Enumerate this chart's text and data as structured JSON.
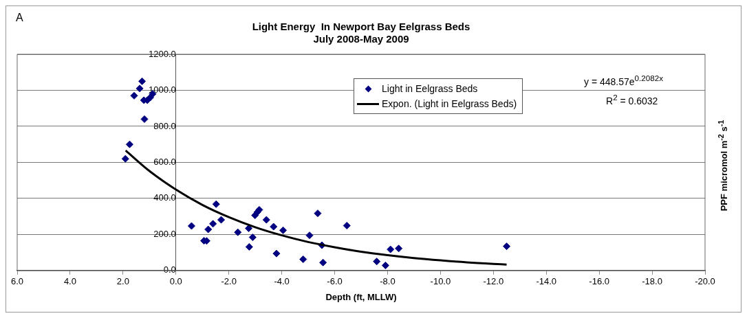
{
  "chart_data": {
    "type": "scatter",
    "title": "Light Energy  In Newport Bay Eelgrass Beds",
    "subtitle": "July 2008-May 2009",
    "xlabel": "Depth (ft, MLLW)",
    "ylabel": "PPF micromol m$^{-2}$ s$^{-1}$",
    "annotations": [
      "A",
      "y = 448.57e$^{0.2082x}$",
      "R$^{2}$ = 0.6032"
    ],
    "xlim": [
      6,
      -20
    ],
    "xticks": [
      {
        "value": 6,
        "label": "6.0"
      },
      {
        "value": 4,
        "label": "4.0"
      },
      {
        "value": 2,
        "label": "2.0"
      },
      {
        "value": 0,
        "label": "0.0"
      },
      {
        "value": -2,
        "label": "-2.0"
      },
      {
        "value": -4,
        "label": "-4.0"
      },
      {
        "value": -6,
        "label": "-6.0"
      },
      {
        "value": -8,
        "label": "-8.0"
      },
      {
        "value": -10,
        "label": "-10.0"
      },
      {
        "value": -12,
        "label": "-12.0"
      },
      {
        "value": -14,
        "label": "-14.0"
      },
      {
        "value": -16,
        "label": "-16.0"
      },
      {
        "value": -18,
        "label": "-18.0"
      },
      {
        "value": -20,
        "label": "-20.0"
      }
    ],
    "ylim": [
      0,
      1200
    ],
    "yticks": [
      {
        "value": 0,
        "label": "0.0"
      },
      {
        "value": 200,
        "label": "200.0"
      },
      {
        "value": 400,
        "label": "400.0"
      },
      {
        "value": 600,
        "label": "600.0"
      },
      {
        "value": 800,
        "label": "800.0"
      },
      {
        "value": 1000,
        "label": "1000.0"
      },
      {
        "value": 1200,
        "label": "1200.0"
      }
    ],
    "grid": "y",
    "legend": "top right",
    "series": [
      {
        "name": "Light in Eelgrass Beds",
        "type": "scatter",
        "color": "#000080",
        "marker": "diamond",
        "x": [
          1.91,
          1.75,
          1.58,
          1.37,
          1.28,
          1.21,
          1.08,
          1.19,
          0.97,
          0.88,
          -0.59,
          -1.06,
          -1.16,
          -1.22,
          -1.4,
          -1.52,
          -1.71,
          -2.34,
          -2.75,
          -2.77,
          -2.9,
          -2.99,
          -3.08,
          -3.15,
          -3.42,
          -3.69,
          -3.8,
          -4.05,
          -4.81,
          -5.05,
          -5.36,
          -5.52,
          -5.56,
          -6.46,
          -7.59,
          -7.92,
          -8.11,
          -8.42,
          -12.5
        ],
        "values": [
          620,
          700,
          970,
          1010,
          1050,
          945,
          945,
          840,
          960,
          980,
          247,
          165,
          164,
          228,
          259,
          368,
          281,
          212,
          234,
          131,
          184,
          306,
          324,
          337,
          281,
          243,
          94,
          223,
          62,
          195,
          317,
          140,
          44,
          249,
          50,
          28,
          117,
          122,
          134
        ]
      },
      {
        "name": "Expon. (Light in Eelgrass Beds)",
        "type": "line",
        "color": "#000000",
        "marker": "none",
        "line_style": "solid",
        "x": [
          1.9,
          1,
          0,
          -1,
          -2,
          -3,
          -4,
          -5,
          -6,
          -7,
          -8,
          -9,
          -10,
          -11,
          -12.5
        ],
        "values": [
          666,
          552,
          449,
          364,
          296,
          240,
          195,
          158,
          129,
          104,
          85,
          69,
          56,
          45,
          33
        ]
      }
    ]
  }
}
